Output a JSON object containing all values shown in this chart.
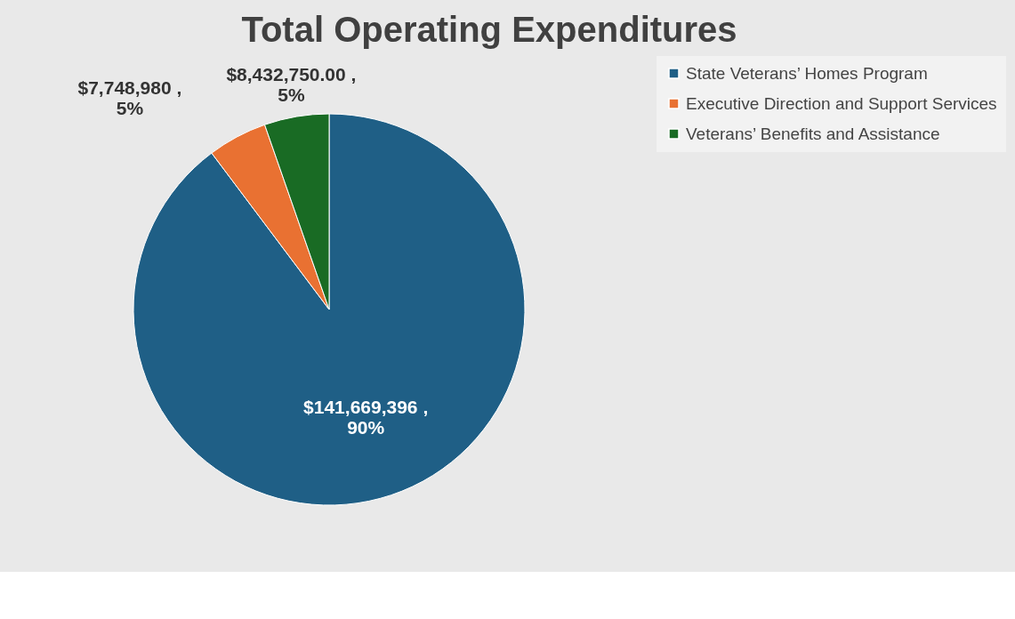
{
  "chart_data": {
    "type": "pie",
    "title": "Total Operating Expenditures",
    "categories": [
      "State Veterans’ Homes Program",
      "Executive Direction and Support Services",
      "Veterans’ Benefits and Assistance"
    ],
    "values": [
      141669396,
      7748980,
      8432750.0
    ],
    "colors": [
      "#1f5f86",
      "#e97132",
      "#196b24"
    ],
    "value_labels": [
      "$141,669,396 ,\n90%",
      "$7,748,980 ,\n5%",
      "$8,432,750.00 ,\n5%"
    ],
    "legend": "right"
  }
}
